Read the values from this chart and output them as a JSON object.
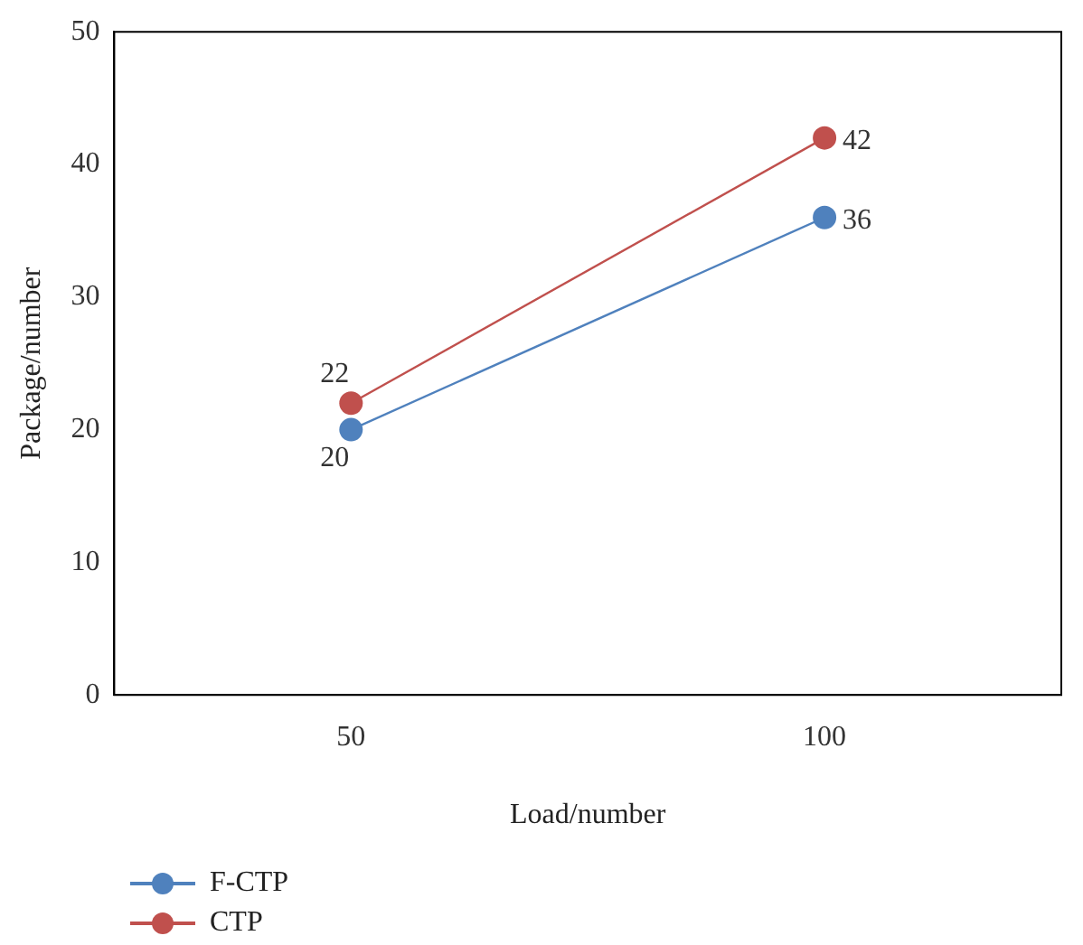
{
  "chart_data": {
    "type": "line",
    "xlabel": "Load/number",
    "ylabel": "Package/number",
    "categories": [
      "50",
      "100"
    ],
    "series": [
      {
        "name": "F-CTP",
        "color": "#4f81bd",
        "values": [
          20,
          36
        ]
      },
      {
        "name": "CTP",
        "color": "#c0504d",
        "values": [
          22,
          42
        ]
      }
    ],
    "ylim": [
      0,
      50
    ],
    "yticks": [
      0,
      10,
      20,
      30,
      40,
      50
    ],
    "grid": false,
    "legend": "bottom left",
    "marker": "circle",
    "line_style": "solid",
    "data_labels": true
  }
}
